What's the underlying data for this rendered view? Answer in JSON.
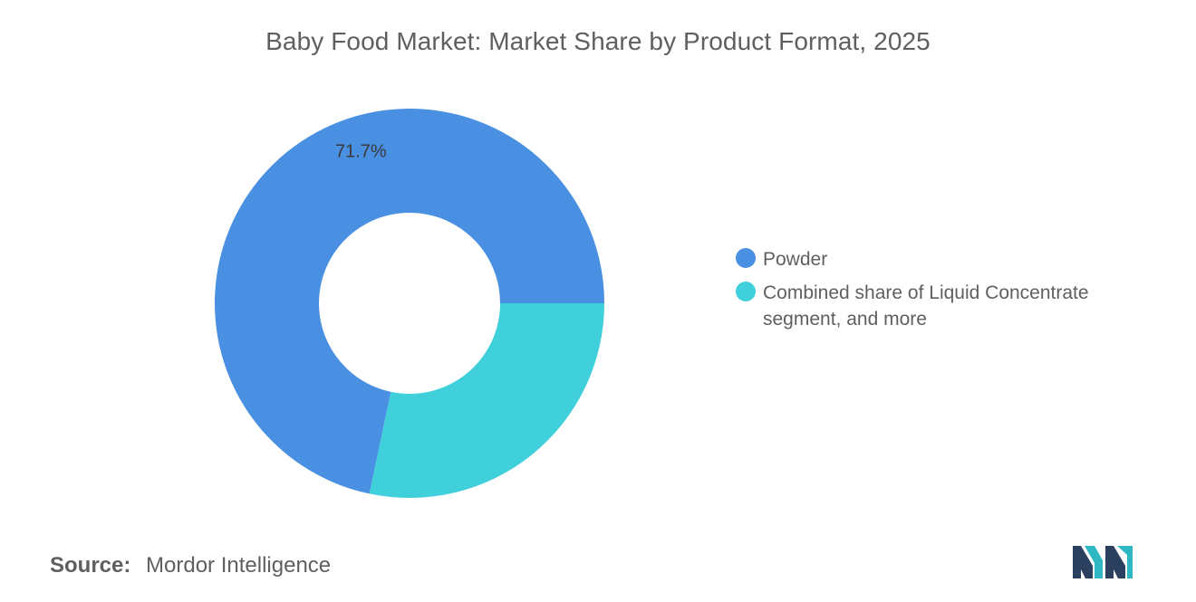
{
  "chart_data": {
    "type": "pie",
    "subtype": "donut",
    "title": "Baby Food Market: Market Share by Product Format, 2025",
    "series": [
      {
        "name": "Powder",
        "value": 71.7,
        "label": "71.7%",
        "color": "#4a90e2"
      },
      {
        "name": "Combined share of Liquid Concentrate segment, and more",
        "value": 28.3,
        "label": "",
        "color": "#3fd0db"
      }
    ],
    "legend_placement": "right",
    "unit": "%"
  },
  "source": {
    "label": "Source:",
    "value": "Mordor Intelligence"
  },
  "logo": {
    "icon": "mordor-intelligence-logo-icon",
    "colors": [
      "#2b3f5e",
      "#2fb8c3"
    ]
  }
}
